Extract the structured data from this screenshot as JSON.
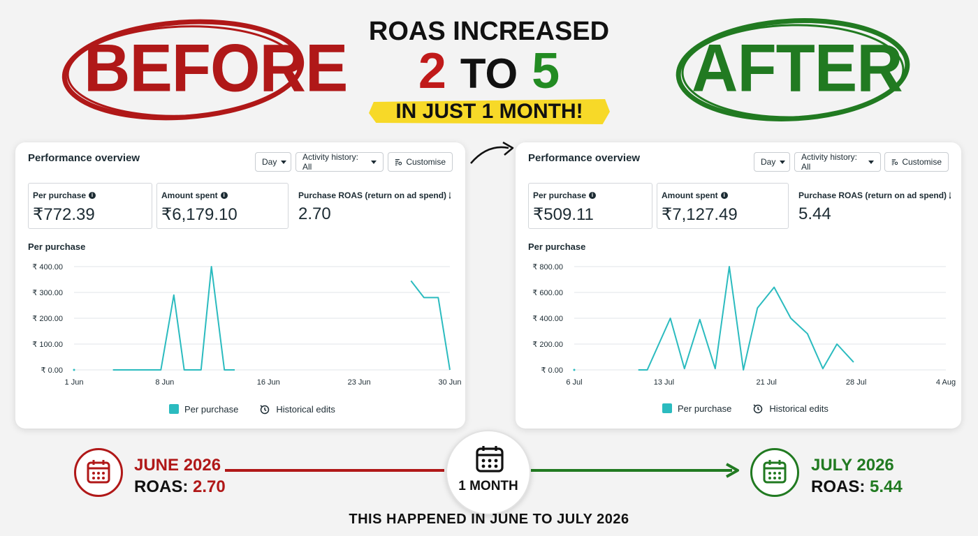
{
  "header": {
    "before_label": "BEFORE",
    "after_label": "AFTER",
    "headline_top": "ROAS INCREASED",
    "headline_from": "2",
    "headline_to_word": "TO",
    "headline_to": "5",
    "banner": "IN JUST 1 MONTH!",
    "colors": {
      "before": "#b01818",
      "after": "#217a21",
      "banner": "#f7d928"
    }
  },
  "panels": [
    {
      "title": "Performance overview",
      "buttons": {
        "day": "Day",
        "activity": "Activity history: All",
        "customise": "Customise"
      },
      "metrics": [
        {
          "label": "Per purchase",
          "value": "₹772.39"
        },
        {
          "label": "Amount spent",
          "value": "₹6,179.10"
        },
        {
          "label": "Purchase ROAS (return on ad spend)",
          "value": "2.70"
        }
      ],
      "chart_title": "Per purchase",
      "legend": {
        "series": "Per purchase",
        "edits": "Historical edits"
      }
    },
    {
      "title": "Performance overview",
      "buttons": {
        "day": "Day",
        "activity": "Activity history: All",
        "customise": "Customise"
      },
      "metrics": [
        {
          "label": "Per purchase",
          "value": "₹509.11"
        },
        {
          "label": "Amount spent",
          "value": "₹7,127.49"
        },
        {
          "label": "Purchase ROAS (return on ad spend)",
          "value": "5.44"
        }
      ],
      "chart_title": "Per purchase",
      "legend": {
        "series": "Per purchase",
        "edits": "Historical edits"
      }
    }
  ],
  "chart_data": [
    {
      "type": "line",
      "title": "Per purchase",
      "ytick_labels": [
        "₹ 0.00",
        "₹ 100.00",
        "₹ 200.00",
        "₹ 300.00",
        "₹ 400.00"
      ],
      "yticks": [
        0,
        100,
        200,
        300,
        400
      ],
      "ylim": [
        0,
        400
      ],
      "xtick_labels": [
        "1 Jun",
        "8 Jun",
        "16 Jun",
        "23 Jun",
        "30 Jun"
      ],
      "xticks": [
        1,
        8,
        16,
        23,
        30
      ],
      "xlim": [
        1,
        30
      ],
      "series": [
        {
          "name": "Per purchase",
          "color": "#2bbbbf",
          "segments": [
            [
              [
                1,
                0
              ]
            ],
            [
              [
                4,
                0
              ],
              [
                5,
                0
              ],
              [
                6,
                0
              ],
              [
                7,
                0
              ],
              [
                7.7,
                0
              ],
              [
                8.7,
                290
              ],
              [
                9.5,
                0
              ],
              [
                10.8,
                0
              ],
              [
                11.6,
                400
              ],
              [
                12.6,
                0
              ],
              [
                13.4,
                0
              ]
            ],
            [
              [
                27,
                345
              ],
              [
                28,
                280
              ],
              [
                29.1,
                280
              ],
              [
                30,
                0
              ]
            ]
          ]
        }
      ],
      "legend": [
        "Per purchase",
        "Historical edits"
      ]
    },
    {
      "type": "line",
      "title": "Per purchase",
      "ytick_labels": [
        "₹ 0.00",
        "₹ 200.00",
        "₹ 400.00",
        "₹ 600.00",
        "₹ 800.00"
      ],
      "yticks": [
        0,
        200,
        400,
        600,
        800
      ],
      "ylim": [
        0,
        800
      ],
      "xtick_labels": [
        "6 Jul",
        "13 Jul",
        "21 Jul",
        "28 Jul",
        "4 Aug"
      ],
      "xticks": [
        6,
        13,
        21,
        28,
        35
      ],
      "xlim": [
        6,
        35
      ],
      "series": [
        {
          "name": "Per purchase",
          "color": "#2bbbbf",
          "segments": [
            [
              [
                6,
                0
              ]
            ],
            [
              [
                11,
                0
              ],
              [
                11.7,
                0
              ],
              [
                13.5,
                400
              ],
              [
                14.6,
                10
              ],
              [
                15.8,
                390
              ],
              [
                17,
                10
              ],
              [
                18.1,
                800
              ],
              [
                19.2,
                0
              ],
              [
                20.3,
                480
              ],
              [
                21.6,
                640
              ],
              [
                22.9,
                400
              ],
              [
                24.2,
                280
              ],
              [
                25.4,
                10
              ],
              [
                26.5,
                200
              ],
              [
                27.8,
                60
              ]
            ]
          ]
        }
      ],
      "legend": [
        "Per purchase",
        "Historical edits"
      ]
    }
  ],
  "timeline": {
    "start_month": "JUNE 2026",
    "start_roas_label": "ROAS:",
    "start_roas_value": "2.70",
    "middle": "1 MONTH",
    "end_month": "JULY 2026",
    "end_roas_label": "ROAS:",
    "end_roas_value": "5.44"
  },
  "footer": "THIS HAPPENED IN JUNE TO JULY 2026"
}
